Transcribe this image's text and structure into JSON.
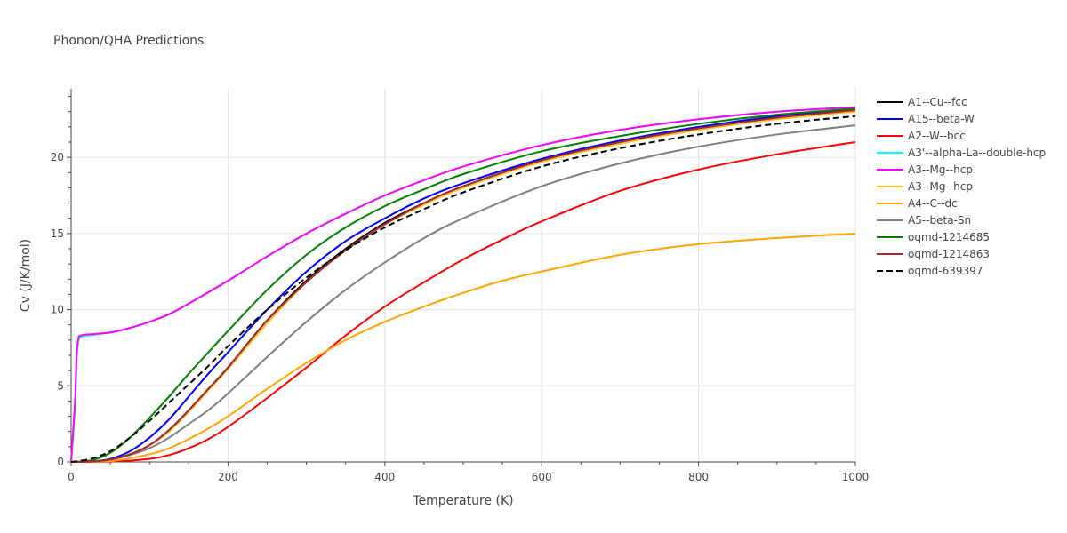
{
  "chart_data": {
    "type": "line",
    "title": "Phonon/QHA Predictions",
    "xlabel": "Temperature (K)",
    "ylabel": "Cv (J/K/mol)",
    "xlim": [
      0,
      1000
    ],
    "ylim": [
      0,
      24.5
    ],
    "x_ticks": [
      0,
      200,
      400,
      600,
      800,
      1000
    ],
    "y_ticks": [
      0,
      5,
      10,
      15,
      20
    ],
    "grid": true,
    "legend_position": "right",
    "series": [
      {
        "name": "A1--Cu--fcc",
        "color": "#000000",
        "dash": "solid",
        "x": [
          0,
          25,
          50,
          75,
          100,
          125,
          150,
          175,
          200,
          250,
          300,
          350,
          400,
          450,
          500,
          600,
          700,
          800,
          900,
          1000
        ],
        "y": [
          0,
          0.02,
          0.15,
          0.5,
          1.1,
          2.1,
          3.4,
          4.8,
          6.2,
          9.3,
          11.9,
          14.0,
          15.7,
          17.0,
          18.1,
          19.8,
          21.0,
          21.9,
          22.6,
          23.1
        ]
      },
      {
        "name": "A15--beta-W",
        "color": "#0000ff",
        "dash": "solid",
        "x": [
          0,
          25,
          50,
          75,
          100,
          125,
          150,
          175,
          200,
          250,
          300,
          350,
          400,
          450,
          500,
          600,
          700,
          800,
          900,
          1000
        ],
        "y": [
          0,
          0.03,
          0.2,
          0.7,
          1.6,
          2.8,
          4.3,
          5.8,
          7.2,
          10.0,
          12.5,
          14.5,
          16.0,
          17.3,
          18.3,
          19.9,
          21.1,
          22.0,
          22.7,
          23.2
        ]
      },
      {
        "name": "A2--W--bcc",
        "color": "#ff0000",
        "dash": "solid",
        "x": [
          0,
          50,
          100,
          125,
          150,
          175,
          200,
          250,
          300,
          350,
          400,
          450,
          500,
          550,
          600,
          700,
          800,
          900,
          1000
        ],
        "y": [
          0,
          0.02,
          0.2,
          0.45,
          0.9,
          1.5,
          2.3,
          4.2,
          6.2,
          8.3,
          10.2,
          11.8,
          13.3,
          14.6,
          15.8,
          17.8,
          19.2,
          20.2,
          21.0
        ]
      },
      {
        "name": "A3'--alpha-La--double-hcp",
        "color": "#00ffff",
        "dash": "solid",
        "x": [
          0,
          5,
          10,
          30,
          50,
          75,
          100,
          125,
          150,
          200,
          250,
          300,
          350,
          400,
          450,
          500,
          600,
          700,
          800,
          900,
          1000
        ],
        "y": [
          0,
          3.5,
          8.1,
          8.35,
          8.5,
          8.8,
          9.2,
          9.7,
          10.4,
          11.9,
          13.5,
          15.0,
          16.3,
          17.5,
          18.5,
          19.4,
          20.8,
          21.8,
          22.5,
          23.0,
          23.3
        ]
      },
      {
        "name": "A3--Mg--hcp",
        "color": "#ff00ff",
        "dash": "solid",
        "x": [
          0,
          5,
          10,
          30,
          50,
          75,
          100,
          125,
          150,
          200,
          250,
          300,
          350,
          400,
          450,
          500,
          600,
          700,
          800,
          900,
          1000
        ],
        "y": [
          0,
          4.0,
          8.25,
          8.4,
          8.5,
          8.8,
          9.2,
          9.7,
          10.4,
          11.9,
          13.5,
          15.0,
          16.3,
          17.5,
          18.5,
          19.4,
          20.8,
          21.8,
          22.5,
          23.0,
          23.3
        ]
      },
      {
        "name": "A3--Mg--hcp",
        "color": "#ffc125",
        "dash": "solid",
        "x": [
          0,
          25,
          50,
          75,
          100,
          125,
          150,
          175,
          200,
          250,
          300,
          350,
          400,
          450,
          500,
          600,
          700,
          800,
          900,
          1000
        ],
        "y": [
          0,
          0.02,
          0.15,
          0.5,
          1.1,
          2.0,
          3.3,
          4.7,
          6.1,
          9.1,
          11.8,
          13.9,
          15.6,
          16.9,
          18.0,
          19.7,
          20.9,
          21.8,
          22.5,
          23.0
        ]
      },
      {
        "name": "A4--C--dc",
        "color": "#ffa500",
        "dash": "solid",
        "x": [
          0,
          50,
          100,
          125,
          150,
          175,
          200,
          250,
          300,
          350,
          400,
          450,
          500,
          550,
          600,
          700,
          800,
          900,
          1000
        ],
        "y": [
          0,
          0.05,
          0.5,
          0.9,
          1.5,
          2.2,
          3.0,
          4.8,
          6.5,
          8.0,
          9.2,
          10.2,
          11.1,
          11.9,
          12.5,
          13.6,
          14.3,
          14.7,
          15.0
        ]
      },
      {
        "name": "A5--beta-Sn",
        "color": "#808080",
        "dash": "solid",
        "x": [
          0,
          25,
          50,
          75,
          100,
          125,
          150,
          175,
          200,
          250,
          300,
          350,
          400,
          450,
          500,
          600,
          700,
          800,
          900,
          1000
        ],
        "y": [
          0,
          0.02,
          0.15,
          0.45,
          0.9,
          1.6,
          2.5,
          3.4,
          4.5,
          6.9,
          9.2,
          11.3,
          13.1,
          14.7,
          16.0,
          18.1,
          19.6,
          20.7,
          21.5,
          22.1
        ]
      },
      {
        "name": "oqmd-1214685",
        "color": "#008000",
        "dash": "solid",
        "x": [
          0,
          25,
          50,
          75,
          100,
          125,
          150,
          175,
          200,
          250,
          300,
          350,
          400,
          450,
          500,
          600,
          700,
          800,
          900,
          1000
        ],
        "y": [
          0,
          0.1,
          0.6,
          1.6,
          2.9,
          4.3,
          5.8,
          7.2,
          8.6,
          11.3,
          13.6,
          15.4,
          16.8,
          17.9,
          18.9,
          20.4,
          21.4,
          22.2,
          22.8,
          23.2
        ]
      },
      {
        "name": "oqmd-1214863",
        "color": "#a52a2a",
        "dash": "solid",
        "x": [
          0,
          25,
          50,
          75,
          100,
          125,
          150,
          175,
          200,
          250,
          300,
          350,
          400,
          450,
          500,
          600,
          700,
          800,
          900,
          1000
        ],
        "y": [
          0,
          0.02,
          0.15,
          0.5,
          1.1,
          2.1,
          3.4,
          4.8,
          6.2,
          9.3,
          11.8,
          13.9,
          15.6,
          17.0,
          18.1,
          19.8,
          21.0,
          21.9,
          22.6,
          23.1
        ]
      },
      {
        "name": "oqmd-639397",
        "color": "#000000",
        "dash": "dash",
        "x": [
          0,
          25,
          50,
          75,
          100,
          125,
          150,
          175,
          200,
          250,
          300,
          350,
          400,
          450,
          500,
          600,
          700,
          800,
          900,
          1000
        ],
        "y": [
          0,
          0.2,
          0.7,
          1.6,
          2.7,
          3.9,
          5.1,
          6.3,
          7.6,
          10.0,
          12.1,
          13.9,
          15.4,
          16.6,
          17.7,
          19.4,
          20.6,
          21.5,
          22.2,
          22.7
        ]
      }
    ]
  }
}
